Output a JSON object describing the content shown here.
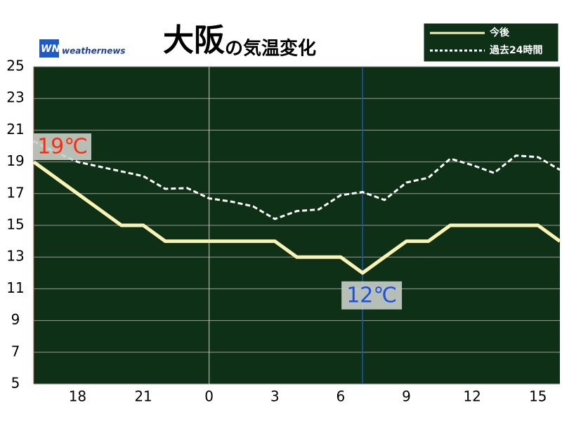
{
  "chart_data": {
    "type": "line",
    "title": "大阪",
    "subtitle": "の気温変化",
    "logo": "weathernews",
    "x": [
      -8,
      -7,
      -6,
      -5,
      -4,
      -3,
      -2,
      -1,
      0,
      1,
      2,
      3,
      4,
      5,
      6,
      7,
      8,
      9,
      10,
      11,
      12,
      13,
      14,
      15,
      16
    ],
    "xlim": [
      -8,
      16
    ],
    "xticks": [
      {
        "value": -6,
        "label": "18"
      },
      {
        "value": -3,
        "label": "21"
      },
      0,
      3,
      6,
      9,
      12,
      15
    ],
    "ylim": [
      5,
      25
    ],
    "yticks": [
      5,
      7,
      9,
      11,
      13,
      15,
      17,
      19,
      21,
      23,
      25
    ],
    "grid": true,
    "background": "#0d3016",
    "series": [
      {
        "name": "今後",
        "color": "#fbf3b4",
        "style": "solid",
        "values": [
          19,
          18,
          17,
          16,
          15,
          15,
          14,
          14,
          14,
          14,
          14,
          14,
          13,
          13,
          13,
          12,
          13,
          14,
          14,
          15,
          15,
          15,
          15,
          15,
          14
        ]
      },
      {
        "name": "過去24時間",
        "color": "#ffffff",
        "style": "dashed",
        "values": [
          20.3,
          19.6,
          19.0,
          18.7,
          18.4,
          18.1,
          17.3,
          17.35,
          16.7,
          16.5,
          16.2,
          15.4,
          15.9,
          16.0,
          16.9,
          17.1,
          16.6,
          17.7,
          18.0,
          19.2,
          18.8,
          18.3,
          19.4,
          19.3,
          18.5
        ]
      }
    ],
    "annotations": [
      "19℃",
      "12℃"
    ]
  }
}
